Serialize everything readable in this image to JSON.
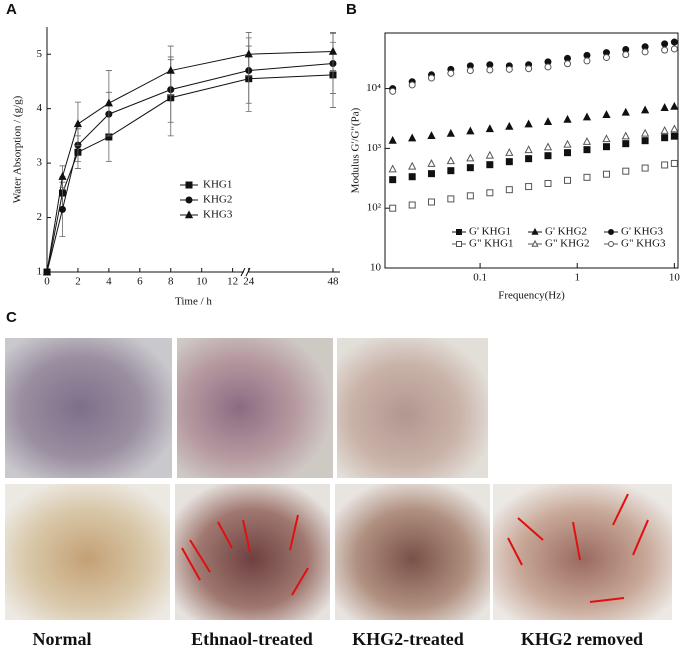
{
  "chart_data": [
    {
      "type": "line",
      "panel_label": "A",
      "x_label": "Time / h",
      "y_label": "Water Absorption / (g/g)",
      "x": [
        0,
        1,
        2,
        4,
        8,
        24,
        48
      ],
      "xlim": [
        0,
        50
      ],
      "axis_break": [
        12.8,
        23.5
      ],
      "xticks": [
        0,
        2,
        4,
        6,
        8,
        10,
        12,
        24,
        48
      ],
      "ylim": [
        1,
        5.5
      ],
      "yticks": [
        1,
        2,
        3,
        4,
        5
      ],
      "legend": "center",
      "series": [
        {
          "name": "KHG1",
          "color": "#111111",
          "marker": "square",
          "filled": true,
          "values": [
            1,
            2.45,
            3.2,
            3.48,
            4.2,
            4.55,
            4.62
          ],
          "errors": [
            null,
            0.3,
            0.3,
            0.45,
            0.7,
            0.6,
            0.6
          ]
        },
        {
          "name": "KHG2",
          "color": "#111111",
          "marker": "circle",
          "filled": true,
          "values": [
            1,
            2.15,
            3.33,
            3.9,
            4.35,
            4.7,
            4.83
          ],
          "errors": [
            null,
            0.5,
            0.3,
            0.4,
            0.6,
            0.6,
            0.55
          ]
        },
        {
          "name": "KHG3",
          "color": "#111111",
          "marker": "triangle",
          "filled": true,
          "values": [
            1,
            2.75,
            3.72,
            4.1,
            4.7,
            5.0,
            5.05
          ],
          "errors": [
            null,
            0.2,
            0.4,
            0.6,
            0.45,
            0.4,
            0.35
          ]
        }
      ]
    },
    {
      "type": "scatter",
      "panel_label": "B",
      "x_label": "Frequency(Hz)",
      "y_label": "Modulus G'/G\"(Pa)",
      "log_x": true,
      "log_y": true,
      "x": [
        0.0126,
        0.02,
        0.0316,
        0.05,
        0.0794,
        0.126,
        0.2,
        0.316,
        0.5,
        0.794,
        1.26,
        2,
        3.16,
        5,
        7.94,
        10
      ],
      "xlim": [
        0.0105,
        10.9
      ],
      "xticks": [
        0.1,
        1,
        10
      ],
      "ylim": [
        10,
        85000
      ],
      "yticks": [
        10,
        {
          "value": 100,
          "label": "10²"
        },
        {
          "value": 1000,
          "label": "10³"
        },
        {
          "value": 10000,
          "label": "10⁴"
        }
      ],
      "legend": "lower center",
      "series": [
        {
          "name": "G'   KHG1",
          "color": "#111111",
          "marker": "square",
          "filled": true,
          "values": [
            300,
            336,
            378,
            424,
            476,
            534,
            600,
            673,
            755,
            848,
            952,
            1068,
            1199,
            1345,
            1510,
            1600
          ]
        },
        {
          "name": "G'   KHG2",
          "color": "#111111",
          "marker": "triangle",
          "filled": true,
          "values": [
            1350,
            1480,
            1620,
            1770,
            1940,
            2120,
            2320,
            2540,
            2780,
            3040,
            3330,
            3640,
            3990,
            4360,
            4780,
            5000
          ]
        },
        {
          "name": "G'   KHG3",
          "color": "#111111",
          "marker": "circle",
          "filled": true,
          "values": [
            10000,
            13000,
            17000,
            21000,
            24000,
            25000,
            24000,
            25000,
            28000,
            32000,
            36000,
            40000,
            45000,
            50000,
            56000,
            60000
          ]
        },
        {
          "name": "G\"   KHG1",
          "color": "#555555",
          "marker": "square",
          "filled": false,
          "values": [
            100,
            113,
            127,
            143,
            161,
            181,
            204,
            230,
            259,
            292,
            328,
            370,
            416,
            469,
            528,
            560
          ]
        },
        {
          "name": "G\"   KHG2",
          "color": "#555555",
          "marker": "triangle",
          "filled": false,
          "values": [
            450,
            500,
            555,
            617,
            686,
            763,
            848,
            943,
            1050,
            1165,
            1296,
            1440,
            1600,
            1780,
            1980,
            2100
          ]
        },
        {
          "name": "G\"   KHG3",
          "color": "#555555",
          "marker": "circle",
          "filled": false,
          "values": [
            9000,
            11500,
            15000,
            18000,
            20000,
            20500,
            21000,
            21500,
            23000,
            26000,
            29000,
            33000,
            37000,
            41000,
            44000,
            46000
          ]
        }
      ]
    }
  ],
  "photos": {
    "panel_label": "C",
    "captions": [
      "Normal",
      "Ethnaol-treated",
      "KHG2-treated",
      "KHG2 removed"
    ]
  }
}
